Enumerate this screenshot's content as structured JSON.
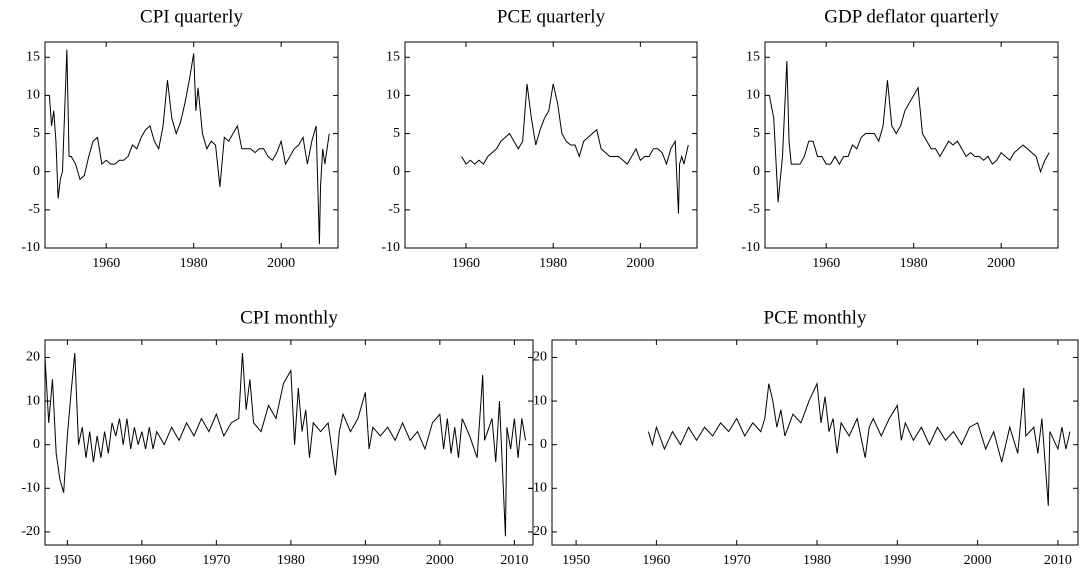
{
  "chart_data": [
    {
      "type": "line",
      "title": "CPI quarterly",
      "color": "#000000",
      "xlim": [
        1946,
        2013
      ],
      "ylim": [
        -10,
        17
      ],
      "xticks": [
        1960,
        1980,
        2000
      ],
      "yticks": [
        -10,
        -5,
        0,
        5,
        10,
        15
      ],
      "x": [
        1947,
        1947.5,
        1948,
        1948.5,
        1949,
        1949.5,
        1950,
        1950.5,
        1951,
        1951.5,
        1952,
        1953,
        1954,
        1955,
        1956,
        1957,
        1958,
        1959,
        1960,
        1961,
        1962,
        1963,
        1964,
        1965,
        1966,
        1967,
        1968,
        1969,
        1970,
        1971,
        1972,
        1973,
        1974,
        1975,
        1976,
        1977,
        1978,
        1979,
        1980,
        1980.5,
        1981,
        1982,
        1983,
        1984,
        1985,
        1986,
        1987,
        1988,
        1989,
        1990,
        1991,
        1992,
        1993,
        1994,
        1995,
        1996,
        1997,
        1998,
        1999,
        2000,
        2001,
        2002,
        2003,
        2004,
        2005,
        2006,
        2007,
        2008,
        2008.75,
        2009,
        2009.5,
        2010,
        2011
      ],
      "values": [
        10,
        6,
        8,
        4,
        -3.5,
        -1,
        0,
        8,
        16,
        2,
        2,
        1,
        -1,
        -0.5,
        2,
        4,
        4.5,
        1,
        1.5,
        1,
        1,
        1.5,
        1.5,
        2,
        3.5,
        3,
        4.5,
        5.5,
        6,
        4,
        3,
        6,
        12,
        7,
        5,
        6.5,
        9,
        12,
        15.5,
        8,
        11,
        5,
        3,
        4,
        3.5,
        -2,
        4.5,
        4,
        5,
        6,
        3,
        3,
        3,
        2.5,
        3,
        3,
        2,
        1.5,
        2.5,
        4,
        1,
        2,
        3,
        3.5,
        4.5,
        1,
        4,
        6,
        -9.5,
        -2,
        3,
        1,
        5
      ]
    },
    {
      "type": "line",
      "title": "PCE quarterly",
      "color": "#000000",
      "xlim": [
        1946,
        2013
      ],
      "ylim": [
        -10,
        17
      ],
      "xticks": [
        1960,
        1980,
        2000
      ],
      "yticks": [
        -10,
        -5,
        0,
        5,
        10,
        15
      ],
      "x": [
        1959,
        1960,
        1961,
        1962,
        1963,
        1964,
        1965,
        1966,
        1967,
        1968,
        1969,
        1970,
        1971,
        1972,
        1973,
        1974,
        1975,
        1976,
        1977,
        1978,
        1979,
        1980,
        1981,
        1982,
        1983,
        1984,
        1985,
        1986,
        1987,
        1988,
        1989,
        1990,
        1991,
        1992,
        1993,
        1994,
        1995,
        1996,
        1997,
        1998,
        1999,
        2000,
        2001,
        2002,
        2003,
        2004,
        2005,
        2006,
        2007,
        2008,
        2008.75,
        2009,
        2009.5,
        2010,
        2011
      ],
      "values": [
        2,
        1,
        1.5,
        1,
        1.5,
        1,
        2,
        2.5,
        3,
        4,
        4.5,
        5,
        4,
        3,
        4,
        11.5,
        7,
        3.5,
        5.5,
        7,
        8,
        11.5,
        9,
        5,
        4,
        3.5,
        3.5,
        2,
        4,
        4.5,
        5,
        5.5,
        3,
        2.5,
        2,
        2,
        2,
        1.5,
        1,
        2,
        3,
        1.5,
        2,
        2,
        3,
        3,
        2.5,
        1,
        3,
        4,
        -5.5,
        1,
        2,
        1,
        3.5
      ]
    },
    {
      "type": "line",
      "title": "GDP deflator quarterly",
      "color": "#000000",
      "xlim": [
        1946,
        2013
      ],
      "ylim": [
        -10,
        17
      ],
      "xticks": [
        1960,
        1980,
        2000
      ],
      "yticks": [
        -10,
        -5,
        0,
        5,
        10,
        15
      ],
      "x": [
        1947,
        1948,
        1949,
        1950,
        1951,
        1951.5,
        1952,
        1953,
        1954,
        1955,
        1956,
        1957,
        1958,
        1959,
        1960,
        1961,
        1962,
        1963,
        1964,
        1965,
        1966,
        1967,
        1968,
        1969,
        1970,
        1971,
        1972,
        1973,
        1974,
        1975,
        1976,
        1977,
        1978,
        1979,
        1980,
        1981,
        1982,
        1983,
        1984,
        1985,
        1986,
        1987,
        1988,
        1989,
        1990,
        1991,
        1992,
        1993,
        1994,
        1995,
        1996,
        1997,
        1998,
        1999,
        2000,
        2001,
        2002,
        2003,
        2004,
        2005,
        2006,
        2007,
        2008,
        2009,
        2010,
        2011
      ],
      "values": [
        10,
        7,
        -4,
        2,
        14.5,
        4,
        1,
        1,
        1,
        2,
        4,
        4,
        2,
        2,
        1,
        1,
        2,
        1,
        2,
        2,
        3.5,
        3,
        4.5,
        5,
        5,
        5,
        4,
        6,
        12,
        6,
        5,
        6,
        8,
        9,
        10,
        11,
        5,
        4,
        3,
        3,
        2,
        3,
        4,
        3.5,
        4,
        3,
        2,
        2.5,
        2,
        2,
        1.5,
        2,
        1,
        1.5,
        2.5,
        2,
        1.5,
        2.5,
        3,
        3.5,
        3,
        2.5,
        2,
        0,
        1.5,
        2.5
      ]
    },
    {
      "type": "line",
      "title": "CPI monthly",
      "color": "#000000",
      "xlim": [
        1947,
        2012.5
      ],
      "ylim": [
        -23,
        24
      ],
      "xticks": [
        1950,
        1960,
        1970,
        1980,
        1990,
        2000,
        2010
      ],
      "yticks": [
        -20,
        -10,
        0,
        10,
        20
      ],
      "x": [
        1947,
        1947.5,
        1948,
        1948.5,
        1949,
        1949.5,
        1950,
        1950.5,
        1951,
        1951.5,
        1952,
        1952.5,
        1953,
        1953.5,
        1954,
        1954.5,
        1955,
        1955.5,
        1956,
        1956.5,
        1957,
        1957.5,
        1958,
        1958.5,
        1959,
        1959.5,
        1960,
        1960.5,
        1961,
        1961.5,
        1962,
        1963,
        1964,
        1965,
        1966,
        1967,
        1968,
        1969,
        1970,
        1971,
        1972,
        1973,
        1973.5,
        1974,
        1974.5,
        1975,
        1976,
        1977,
        1978,
        1979,
        1980,
        1980.5,
        1981,
        1981.5,
        1982,
        1982.5,
        1983,
        1984,
        1985,
        1986,
        1986.5,
        1987,
        1988,
        1989,
        1990,
        1990.5,
        1991,
        1992,
        1993,
        1994,
        1995,
        1996,
        1997,
        1998,
        1999,
        2000,
        2000.5,
        2001,
        2001.5,
        2002,
        2002.5,
        2003,
        2004,
        2005,
        2005.75,
        2006,
        2007,
        2007.5,
        2008,
        2008.8,
        2009,
        2009.5,
        2010,
        2010.5,
        2011,
        2011.5
      ],
      "values": [
        20,
        5,
        15,
        -2,
        -8,
        -11,
        2,
        12,
        21,
        0,
        4,
        -3,
        3,
        -4,
        2,
        -3,
        3,
        -2,
        5,
        2,
        6,
        0,
        6,
        -1,
        4,
        0,
        3,
        -1,
        4,
        -1,
        3,
        0,
        4,
        1,
        5,
        2,
        6,
        3,
        7,
        2,
        5,
        6,
        21,
        8,
        15,
        5,
        3,
        9,
        6,
        14,
        17,
        0,
        13,
        3,
        8,
        -3,
        5,
        3,
        5,
        -7,
        3,
        7,
        3,
        6,
        12,
        -1,
        4,
        2,
        4,
        1,
        5,
        1,
        3,
        -1,
        5,
        7,
        -1,
        6,
        -2,
        4,
        -3,
        6,
        2,
        -3,
        16,
        1,
        6,
        -4,
        10,
        -21,
        4,
        -1,
        6,
        -3,
        6,
        1
      ]
    },
    {
      "type": "line",
      "title": "PCE monthly",
      "color": "#000000",
      "xlim": [
        1947,
        2012.5
      ],
      "ylim": [
        -23,
        24
      ],
      "xticks": [
        1950,
        1960,
        1970,
        1980,
        1990,
        2000,
        2010
      ],
      "yticks": [
        -20,
        -10,
        0,
        10,
        20
      ],
      "x": [
        1959,
        1959.5,
        1960,
        1961,
        1962,
        1963,
        1964,
        1965,
        1966,
        1967,
        1968,
        1969,
        1970,
        1971,
        1972,
        1973,
        1973.5,
        1974,
        1974.5,
        1975,
        1975.5,
        1976,
        1977,
        1978,
        1979,
        1980,
        1980.5,
        1981,
        1981.5,
        1982,
        1982.5,
        1983,
        1984,
        1985,
        1986,
        1986.5,
        1987,
        1988,
        1989,
        1990,
        1990.5,
        1991,
        1992,
        1993,
        1994,
        1995,
        1996,
        1997,
        1998,
        1999,
        2000,
        2001,
        2002,
        2003,
        2004,
        2005,
        2005.75,
        2006,
        2007,
        2007.5,
        2008,
        2008.8,
        2009,
        2010,
        2010.5,
        2011,
        2011.5
      ],
      "values": [
        3,
        0,
        4,
        -1,
        3,
        0,
        4,
        1,
        4,
        2,
        5,
        3,
        6,
        2,
        5,
        3,
        6,
        14,
        10,
        4,
        8,
        2,
        7,
        5,
        10,
        14,
        5,
        11,
        3,
        6,
        -2,
        5,
        2,
        6,
        -3,
        4,
        6,
        2,
        6,
        9,
        1,
        5,
        1,
        4,
        0,
        4,
        1,
        3,
        0,
        4,
        5,
        -1,
        3,
        -4,
        4,
        -2,
        13,
        2,
        4,
        -2,
        6,
        -14,
        3,
        -1,
        4,
        -1,
        3
      ]
    }
  ]
}
